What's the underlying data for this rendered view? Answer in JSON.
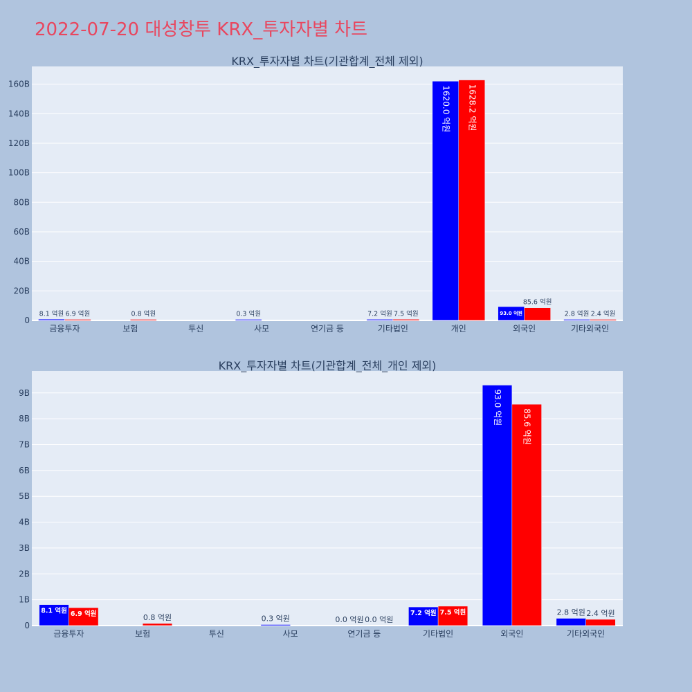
{
  "title": "2022-07-20 대성창투 KRX_투자자별 차트",
  "colors": {
    "buy": "#0000ff",
    "sell": "#ff0000",
    "plot_bg": "#e5ecf6",
    "paper_bg": "#b0c4de",
    "title": "#e8475f"
  },
  "chart_data": [
    {
      "type": "bar",
      "title": "KRX_투자자별 차트(기관합계_전체 제외)",
      "categories": [
        "금융투자",
        "보험",
        "투신",
        "사모",
        "연기금 등",
        "기타법인",
        "개인",
        "외국인",
        "기타외국인"
      ],
      "series": [
        {
          "values": [
            0.81,
            0,
            0,
            0.03,
            0,
            0.72,
            162.0,
            9.3,
            0.28
          ],
          "labels": [
            "8.1 억원",
            "",
            "",
            "0.3 억원",
            "",
            "7.2 억원",
            "1620.0 억원",
            "93.0 억원",
            "2.8 억원"
          ]
        },
        {
          "values": [
            0.69,
            0.08,
            0,
            0,
            0,
            0.75,
            162.82,
            8.56,
            0.24
          ],
          "labels": [
            "6.9 억원",
            "0.8 억원",
            "",
            "",
            "",
            "7.5 억원",
            "1628.2 억원",
            "85.6 억원",
            "2.4 억원"
          ]
        }
      ],
      "ylim": [
        0,
        172
      ],
      "yticks": [
        0,
        20,
        40,
        60,
        80,
        100,
        120,
        140,
        160
      ],
      "ytick_labels": [
        "0",
        "20B",
        "40B",
        "60B",
        "80B",
        "100B",
        "120B",
        "140B",
        "160B"
      ],
      "grid": true,
      "legend": "none"
    },
    {
      "type": "bar",
      "title": "KRX_투자자별 차트(기관합계_전체_개인 제외)",
      "categories": [
        "금융투자",
        "보험",
        "투신",
        "사모",
        "연기금 등",
        "기타법인",
        "외국인",
        "기타외국인"
      ],
      "series": [
        {
          "values": [
            0.81,
            0,
            0,
            0.03,
            0.0,
            0.72,
            9.3,
            0.28
          ],
          "labels": [
            "8.1 억원",
            "",
            "",
            "0.3 억원",
            "0.0 억원",
            "7.2 억원",
            "93.0 억원",
            "2.8 억원"
          ]
        },
        {
          "values": [
            0.69,
            0.08,
            0,
            0,
            0.0,
            0.75,
            8.56,
            0.24
          ],
          "labels": [
            "6.9 억원",
            "0.8 억원",
            "",
            "",
            "0.0 억원",
            "7.5 억원",
            "85.6 억원",
            "2.4 억원"
          ]
        }
      ],
      "ylim": [
        0,
        9.85
      ],
      "yticks": [
        0,
        1,
        2,
        3,
        4,
        5,
        6,
        7,
        8,
        9
      ],
      "ytick_labels": [
        "0",
        "1B",
        "2B",
        "3B",
        "4B",
        "5B",
        "6B",
        "7B",
        "8B",
        "9B"
      ],
      "grid": true,
      "legend": "none"
    }
  ]
}
